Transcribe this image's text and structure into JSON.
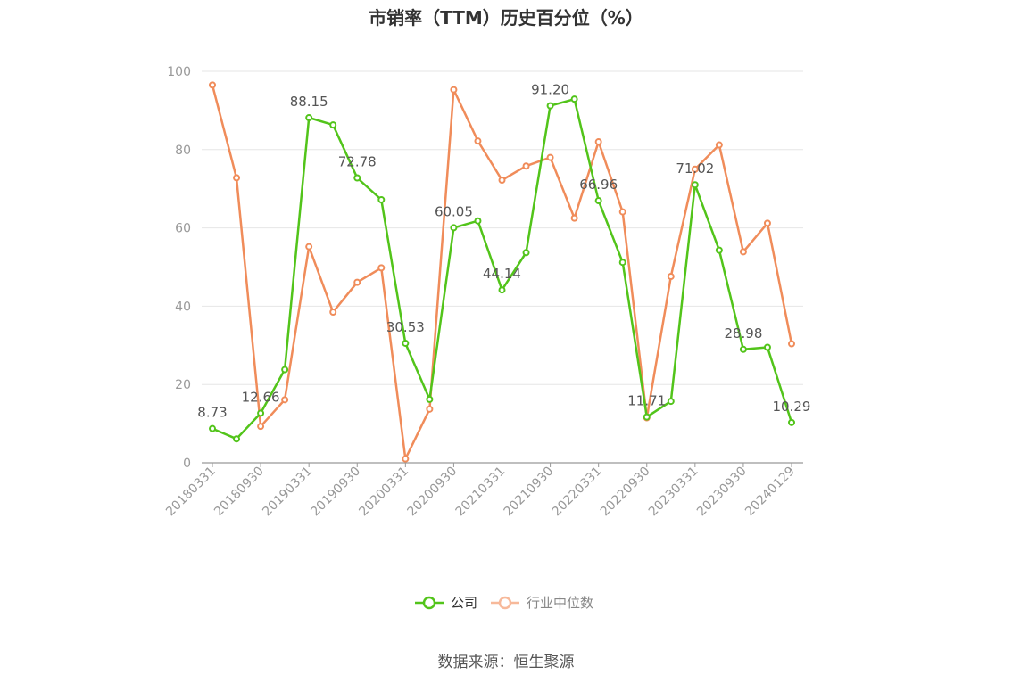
{
  "source": "数据来源：恒生聚源",
  "chart_data": {
    "type": "line",
    "title": "市销率（TTM）历史百分位（%）",
    "ylim": [
      0,
      100
    ],
    "yticks": [
      0,
      20,
      40,
      60,
      80,
      100
    ],
    "grid": true,
    "legend_position": "bottom-center",
    "x": [
      "20180331",
      "20180630",
      "20180930",
      "20181231",
      "20190331",
      "20190630",
      "20190930",
      "20191231",
      "20200331",
      "20200630",
      "20200930",
      "20201231",
      "20210331",
      "20210630",
      "20210930",
      "20211231",
      "20220331",
      "20220630",
      "20220930",
      "20221231",
      "20230331",
      "20230630",
      "20230930",
      "20231231",
      "20240129"
    ],
    "xtick_labels": [
      "20180331",
      "20180930",
      "20190331",
      "20190930",
      "20200331",
      "20200930",
      "20210331",
      "20210930",
      "20220331",
      "20220930",
      "20230331",
      "20230930",
      "20240129"
    ],
    "series": [
      {
        "name": "公司",
        "color": "#52c41a",
        "values": [
          8.73,
          6.1,
          12.66,
          23.8,
          88.15,
          86.3,
          72.78,
          67.2,
          30.53,
          16.2,
          60.05,
          61.8,
          44.14,
          53.7,
          91.2,
          92.9,
          66.96,
          51.2,
          11.71,
          15.7,
          71.02,
          54.3,
          28.98,
          29.5,
          10.29
        ],
        "labeled_points": [
          {
            "index": 0,
            "label": "8.73"
          },
          {
            "index": 2,
            "label": "12.66"
          },
          {
            "index": 4,
            "label": "88.15"
          },
          {
            "index": 6,
            "label": "72.78"
          },
          {
            "index": 8,
            "label": "30.53"
          },
          {
            "index": 10,
            "label": "60.05"
          },
          {
            "index": 12,
            "label": "44.14"
          },
          {
            "index": 14,
            "label": "91.20"
          },
          {
            "index": 16,
            "label": "66.96"
          },
          {
            "index": 18,
            "label": "11.71"
          },
          {
            "index": 20,
            "label": "71.02"
          },
          {
            "index": 22,
            "label": "28.98"
          },
          {
            "index": 24,
            "label": "10.29"
          }
        ]
      },
      {
        "name": "行业中位数",
        "color": "#f08c5a",
        "legend_color": "#f7b99a",
        "values": [
          96.5,
          72.8,
          9.3,
          16.1,
          55.2,
          38.5,
          46.1,
          49.8,
          1.0,
          13.7,
          95.3,
          82.2,
          72.2,
          75.8,
          78.0,
          62.5,
          82.0,
          64.1,
          11.5,
          47.6,
          75.0,
          81.2,
          53.9,
          61.2,
          30.4
        ]
      }
    ]
  }
}
